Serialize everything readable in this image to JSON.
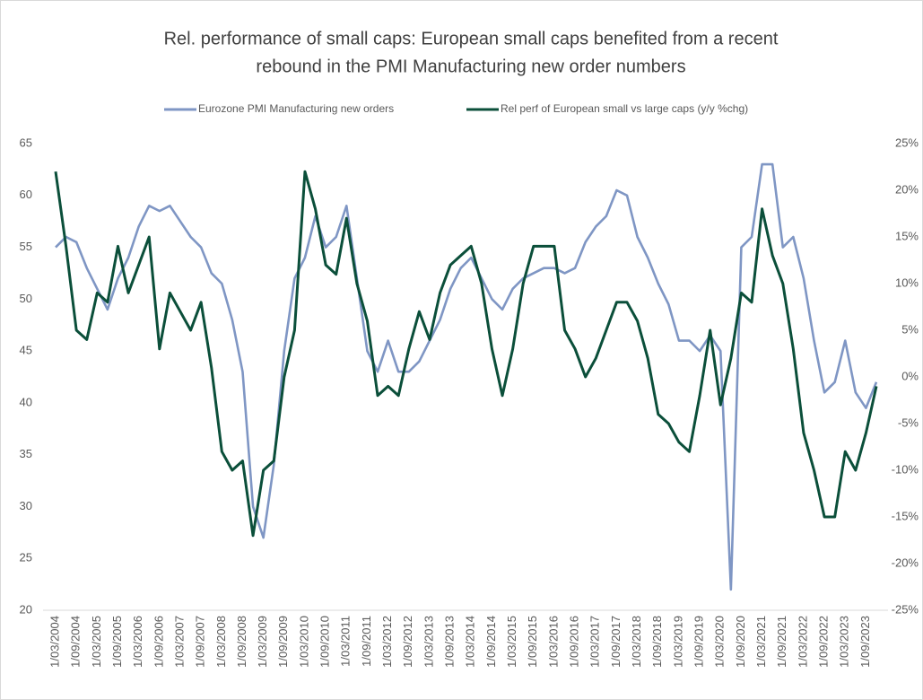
{
  "chart_data": {
    "type": "line",
    "title": [
      "Rel. performance of small caps: European small caps benefited from a recent",
      "rebound in the PMI Manufacturing new order numbers"
    ],
    "categories": [
      "1/03/2004",
      null,
      "1/09/2004",
      null,
      "1/03/2005",
      null,
      "1/09/2005",
      null,
      "1/03/2006",
      null,
      "1/09/2006",
      null,
      "1/03/2007",
      null,
      "1/09/2007",
      null,
      "1/03/2008",
      null,
      "1/09/2008",
      null,
      "1/03/2009",
      null,
      "1/09/2009",
      null,
      "1/03/2010",
      null,
      "1/09/2010",
      null,
      "1/03/2011",
      null,
      "1/09/2011",
      null,
      "1/03/2012",
      null,
      "1/09/2012",
      null,
      "1/03/2013",
      null,
      "1/09/2013",
      null,
      "1/03/2014",
      null,
      "1/09/2014",
      null,
      "1/03/2015",
      null,
      "1/09/2015",
      null,
      "1/03/2016",
      null,
      "1/09/2016",
      null,
      "1/03/2017",
      null,
      "1/09/2017",
      null,
      "1/03/2018",
      null,
      "1/09/2018",
      null,
      "1/03/2019",
      null,
      "1/09/2019",
      null,
      "1/03/2020",
      null,
      "1/09/2020",
      null,
      "1/03/2021",
      null,
      "1/09/2021",
      null,
      "1/03/2022",
      null,
      "1/09/2022",
      null,
      "1/03/2023",
      null,
      "1/09/2023",
      null
    ],
    "series": [
      {
        "name": "Eurozone PMI Manufacturing new orders",
        "color": "#7f96c4",
        "axis": "y",
        "values": [
          55,
          56,
          55.5,
          53,
          51,
          49,
          52,
          54,
          57,
          59,
          58.5,
          59,
          57.5,
          56,
          55,
          52.5,
          51.5,
          48,
          43,
          30,
          27,
          34,
          45,
          52,
          54,
          58,
          55,
          56,
          59,
          52,
          45,
          43,
          46,
          43,
          43,
          44,
          46,
          48,
          51,
          53,
          54,
          52,
          50,
          49,
          51,
          52,
          52.5,
          53,
          53,
          52.5,
          53,
          55.5,
          57,
          58,
          60.5,
          60,
          56,
          54,
          51.5,
          49.5,
          46,
          46,
          45,
          46.5,
          45,
          22,
          55,
          56,
          63,
          63,
          55,
          56,
          52,
          46,
          41,
          42,
          46,
          41,
          39.5,
          42
        ]
      },
      {
        "name": "Rel perf of European small vs large caps  (y/y %chg)",
        "color": "#0b4f3a",
        "axis": "y2",
        "values": [
          22,
          14,
          5,
          4,
          9,
          8,
          14,
          9,
          12,
          15,
          3,
          9,
          7,
          5,
          8,
          1,
          -8,
          -10,
          -9,
          -17,
          -10,
          -9,
          0,
          5,
          22,
          18,
          12,
          11,
          17,
          10,
          6,
          -2,
          -1,
          -2,
          3,
          7,
          4,
          9,
          12,
          13,
          14,
          10,
          3,
          -2,
          3,
          10,
          14,
          14,
          14,
          5,
          3,
          0,
          2,
          5,
          8,
          8,
          6,
          2,
          -4,
          -5,
          -7,
          -8,
          -2,
          5,
          -3,
          2,
          9,
          8,
          18,
          13,
          10,
          3,
          -6,
          -10,
          -15,
          -15,
          -8,
          -10,
          -6,
          -1
        ]
      }
    ],
    "ylim": [
      20,
      65
    ],
    "yticks": [
      20,
      25,
      30,
      35,
      40,
      45,
      50,
      55,
      60,
      65
    ],
    "y2lim": [
      -25,
      25
    ],
    "y2ticks": [
      {
        "value": -25,
        "label": "-25%"
      },
      {
        "value": -20,
        "label": "-20%"
      },
      {
        "value": -15,
        "label": "-15%"
      },
      {
        "value": -10,
        "label": "-10%"
      },
      {
        "value": -5,
        "label": "-5%"
      },
      {
        "value": 0,
        "label": "0%"
      },
      {
        "value": 5,
        "label": "5%"
      },
      {
        "value": 10,
        "label": "10%"
      },
      {
        "value": 15,
        "label": "15%"
      },
      {
        "value": 20,
        "label": "20%"
      },
      {
        "value": 25,
        "label": "25%"
      }
    ],
    "legend": "top",
    "grid": false
  }
}
